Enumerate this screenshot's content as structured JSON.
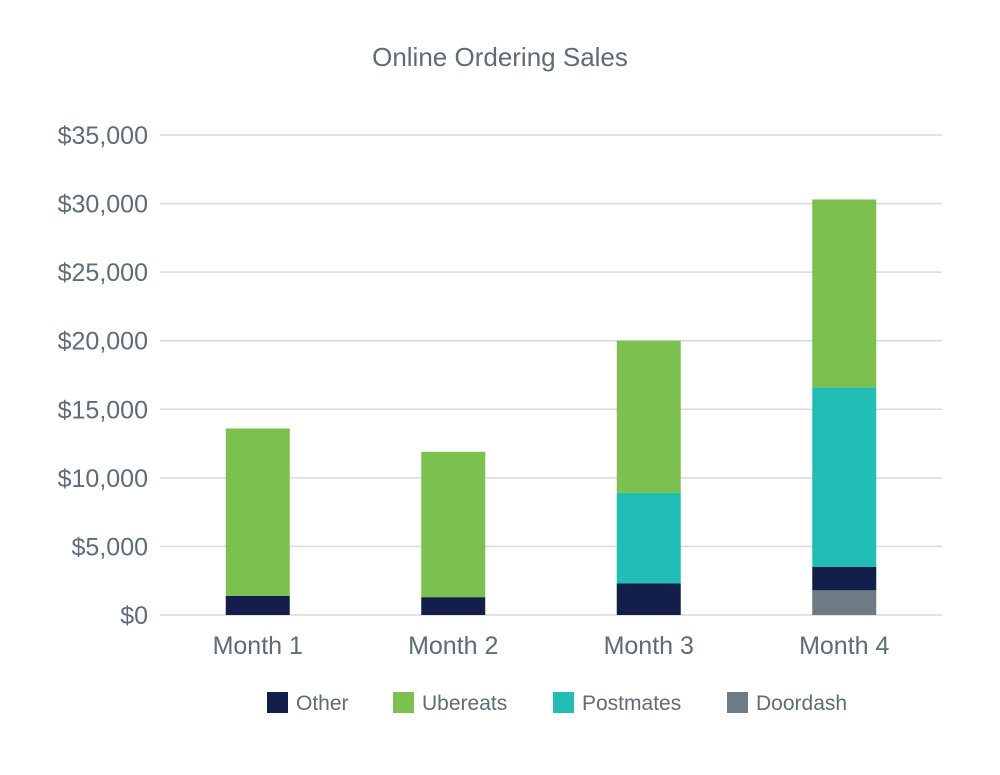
{
  "chart_data": {
    "type": "bar",
    "stacked": true,
    "title": "Online Ordering Sales",
    "xlabel": "",
    "ylabel": "",
    "categories": [
      "Month 1",
      "Month 2",
      "Month 3",
      "Month 4"
    ],
    "ylim": [
      0,
      35000
    ],
    "yticks": [
      0,
      5000,
      10000,
      15000,
      20000,
      25000,
      30000,
      35000
    ],
    "ytick_labels": [
      "$0",
      "$5,000",
      "$10,000",
      "$15,000",
      "$20,000",
      "$25,000",
      "$30,000",
      "$35,000"
    ],
    "grid": true,
    "legend_position": "bottom",
    "series": [
      {
        "name": "Doordash",
        "color": "#6e7b85",
        "values": [
          0,
          0,
          0,
          1800
        ]
      },
      {
        "name": "Other",
        "color": "#131e4a",
        "values": [
          1400,
          1300,
          2300,
          1700
        ]
      },
      {
        "name": "Postmates",
        "color": "#22bdb5",
        "values": [
          0,
          0,
          6600,
          13100
        ]
      },
      {
        "name": "Ubereats",
        "color": "#7cc04f",
        "values": [
          12200,
          10600,
          11100,
          13700
        ]
      }
    ],
    "legend_order": [
      "Other",
      "Ubereats",
      "Postmates",
      "Doordash"
    ]
  }
}
